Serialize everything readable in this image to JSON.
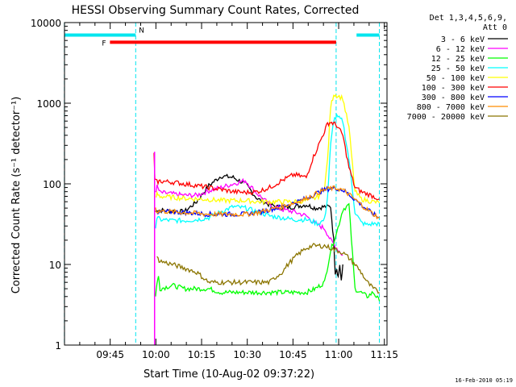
{
  "chart_data": {
    "type": "line",
    "title": "HESSI Observing Summary Count Rates, Corrected",
    "xlabel": "Start Time (10-Aug-02 09:37:22)",
    "ylabel": "Corrected Count Rate (s⁻¹ detector⁻¹)",
    "yscale": "log",
    "ylim": [
      1,
      10000
    ],
    "xlim_minutes": [
      -7.37,
      98.5
    ],
    "x_unit": "minutes after 09:37:22",
    "xticks": [
      "09:45",
      "10:00",
      "10:15",
      "10:30",
      "10:45",
      "11:00",
      "11:15"
    ],
    "yticks": [
      "1",
      "10",
      "100",
      "1000",
      "10000"
    ],
    "grid": false,
    "legend_position": "right",
    "legend_header": [
      "Det 1,3,4,5,6,9,",
      "Att 0"
    ],
    "timestamp": "16-Feb-2010 05:19",
    "annotations": {
      "night_label": "N",
      "flare_label": "F",
      "night_color": "#00e5ee",
      "flare_color": "#ff0000",
      "night_intervals": [
        [
          -7.4,
          16.0
        ],
        [
          88.5,
          96.0
        ]
      ],
      "flare_interval": [
        4.9,
        81.8
      ],
      "night_level": 7000,
      "flare_level": 5700,
      "vertical_markers": [
        -7.4,
        16.0,
        81.8,
        96.0
      ]
    },
    "series": [
      {
        "name": "3 - 6 keV",
        "color": "#000000",
        "x": [
          22.5,
          23,
          24,
          28,
          32,
          36,
          40,
          44,
          48,
          52,
          56,
          60,
          64,
          68,
          72,
          75,
          78,
          80,
          81,
          81.5,
          82,
          82.5,
          83,
          83.5,
          84
        ],
        "y": [
          45,
          48,
          47,
          46,
          45,
          60,
          95,
          125,
          120,
          100,
          65,
          55,
          50,
          52,
          55,
          50,
          52,
          52,
          20,
          8,
          9,
          7,
          10,
          6,
          10
        ]
      },
      {
        "name": "6 - 12 keV",
        "color": "#ff00ff",
        "x": [
          22.5,
          23,
          24,
          28,
          32,
          36,
          40,
          44,
          48,
          52,
          56,
          60,
          64,
          68,
          72,
          75,
          78,
          80,
          82,
          84
        ],
        "y": [
          80,
          92,
          78,
          75,
          72,
          72,
          82,
          90,
          100,
          110,
          75,
          55,
          48,
          45,
          40,
          32,
          28,
          20,
          16,
          13
        ]
      },
      {
        "name": "12 - 25 keV",
        "color": "#00ff00",
        "x": [
          22.5,
          23,
          23.5,
          24,
          28,
          32,
          36,
          40,
          44,
          48,
          52,
          56,
          60,
          64,
          68,
          72,
          75,
          78,
          80,
          82,
          84,
          86,
          88,
          92,
          94,
          95,
          96
        ],
        "y": [
          4,
          6,
          7,
          5,
          5.5,
          5,
          5,
          5,
          4.5,
          4.5,
          4.5,
          4.5,
          4.5,
          4.5,
          4.5,
          4.5,
          5,
          6,
          15,
          25,
          48,
          55,
          5,
          4,
          4.5,
          4,
          3.5
        ]
      },
      {
        "name": "25 - 50 keV",
        "color": "#00ffff",
        "x": [
          22.5,
          23,
          24,
          28,
          32,
          36,
          40,
          44,
          48,
          52,
          56,
          60,
          64,
          68,
          72,
          74,
          76,
          78,
          79,
          80,
          81,
          82,
          84,
          86,
          88,
          90,
          92,
          94,
          96
        ],
        "y": [
          30,
          38,
          36,
          35,
          35,
          36,
          38,
          45,
          52,
          50,
          45,
          40,
          38,
          36,
          36,
          34,
          32,
          36,
          70,
          300,
          620,
          680,
          600,
          200,
          45,
          33,
          31,
          32,
          32
        ]
      },
      {
        "name": "50 - 100 keV",
        "color": "#ffff00",
        "x": [
          22.5,
          23,
          24,
          28,
          32,
          36,
          40,
          44,
          48,
          52,
          56,
          60,
          64,
          68,
          72,
          74,
          76,
          78,
          79,
          80,
          81,
          82,
          84,
          86,
          88,
          90,
          92,
          94,
          96
        ],
        "y": [
          65,
          75,
          70,
          68,
          66,
          65,
          64,
          62,
          62,
          62,
          60,
          60,
          60,
          60,
          62,
          64,
          70,
          90,
          200,
          900,
          1300,
          1250,
          1150,
          500,
          80,
          65,
          62,
          60,
          58
        ]
      },
      {
        "name": "100 - 300 keV",
        "color": "#ff0000",
        "x": [
          22,
          22.3,
          23,
          24,
          28,
          32,
          36,
          40,
          44,
          48,
          52,
          56,
          60,
          64,
          68,
          72,
          74,
          76,
          78,
          79,
          80,
          81,
          82,
          84,
          86,
          88,
          90,
          92,
          94,
          96
        ],
        "y": [
          250,
          110,
          105,
          108,
          105,
          100,
          95,
          90,
          85,
          80,
          78,
          80,
          90,
          110,
          130,
          120,
          200,
          300,
          450,
          560,
          580,
          560,
          530,
          400,
          160,
          90,
          80,
          75,
          70,
          65
        ]
      },
      {
        "name": "300 - 800 keV",
        "color": "#0000ff",
        "x": [
          23,
          24,
          28,
          32,
          36,
          40,
          44,
          48,
          52,
          56,
          60,
          64,
          68,
          72,
          74,
          76,
          78,
          80,
          82,
          84,
          86,
          88,
          90,
          92,
          94,
          96
        ],
        "y": [
          40,
          45,
          45,
          44,
          43,
          42,
          42,
          42,
          42,
          44,
          48,
          52,
          58,
          66,
          72,
          78,
          84,
          88,
          88,
          84,
          74,
          64,
          55,
          48,
          42,
          38
        ]
      },
      {
        "name": "800 - 7000 keV",
        "color": "#ff8c00",
        "x": [
          22.5,
          23,
          24,
          28,
          32,
          36,
          40,
          44,
          48,
          52,
          56,
          60,
          64,
          68,
          72,
          74,
          76,
          78,
          80,
          82,
          84,
          86,
          88,
          90,
          92,
          94,
          96
        ],
        "y": [
          50,
          45,
          46,
          45,
          44,
          43,
          42,
          42,
          42,
          42,
          44,
          48,
          52,
          58,
          66,
          72,
          78,
          84,
          88,
          88,
          84,
          74,
          64,
          55,
          48,
          42,
          38
        ]
      },
      {
        "name": "7000 - 20000 keV",
        "color": "#8b7500",
        "x": [
          23,
          24,
          28,
          32,
          36,
          40,
          44,
          48,
          52,
          56,
          60,
          62,
          64,
          66,
          68,
          70,
          72,
          74,
          76,
          78,
          80,
          82,
          84,
          86,
          88,
          90,
          92,
          94,
          96
        ],
        "y": [
          12,
          11,
          10,
          9,
          8,
          6,
          6,
          6,
          6,
          6,
          6,
          7,
          8,
          10,
          12,
          14,
          16,
          17,
          17,
          17,
          16,
          15,
          14,
          12,
          10,
          8,
          6,
          5,
          4.5
        ]
      }
    ]
  }
}
